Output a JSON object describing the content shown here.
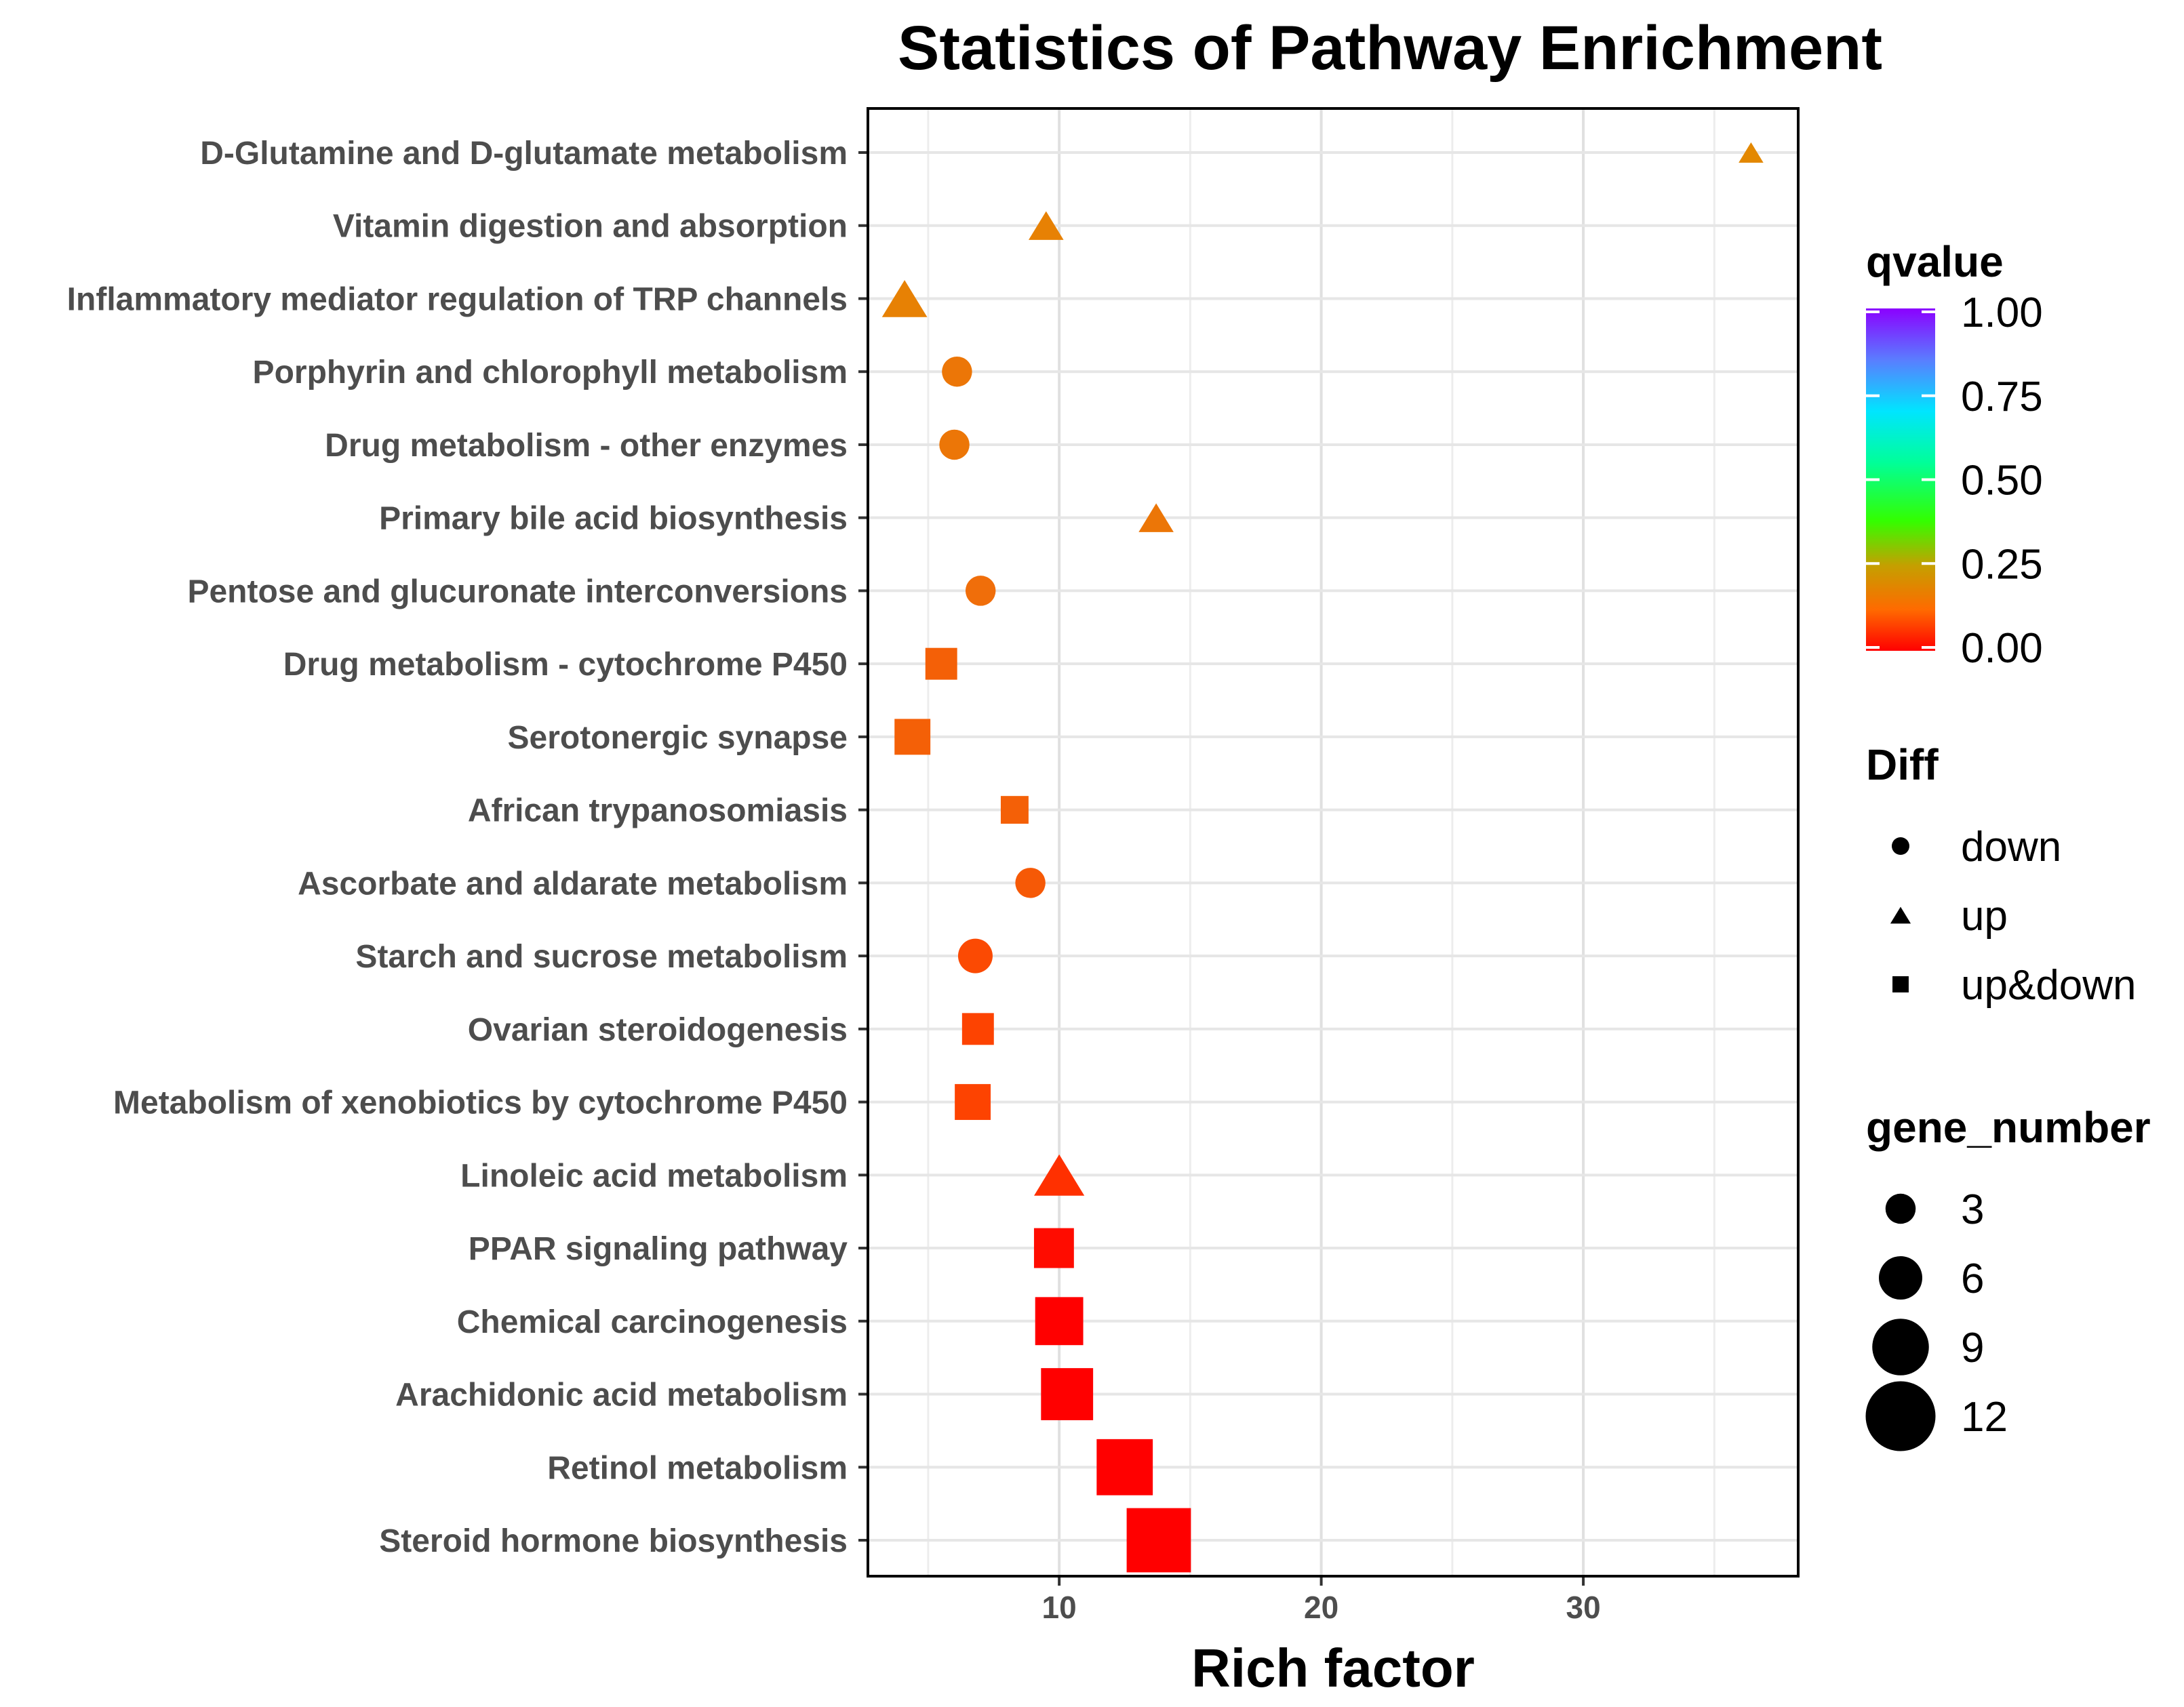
{
  "chart_data": {
    "type": "scatter",
    "title": "Statistics of Pathway Enrichment",
    "xlabel": "Rich factor",
    "ylabel": "",
    "xlim": [
      2.7,
      38.2
    ],
    "xticks": [
      10,
      20,
      30
    ],
    "grid": true,
    "categories": [
      "D-Glutamine and D-glutamate metabolism",
      "Vitamin digestion and absorption",
      "Inflammatory mediator regulation of TRP channels",
      "Porphyrin and chlorophyll metabolism",
      "Drug metabolism - other enzymes",
      "Primary bile acid biosynthesis",
      "Pentose and glucuronate interconversions",
      "Drug metabolism - cytochrome P450",
      "Serotonergic synapse",
      "African trypanosomiasis",
      "Ascorbate and aldarate metabolism",
      "Starch and sucrose metabolism",
      "Ovarian steroidogenesis",
      "Metabolism of xenobiotics by cytochrome P450",
      "Linoleic acid metabolism",
      "PPAR signaling pathway",
      "Chemical carcinogenesis",
      "Arachidonic acid metabolism",
      "Retinol metabolism",
      "Steroid hormone biosynthesis"
    ],
    "points": [
      {
        "pathway": "D-Glutamine and D-glutamate metabolism",
        "rich_factor": 36.4,
        "qvalue": 0.19,
        "diff": "up",
        "gene_number": 1
      },
      {
        "pathway": "Vitamin digestion and absorption",
        "rich_factor": 9.5,
        "qvalue": 0.17,
        "diff": "up",
        "gene_number": 3
      },
      {
        "pathway": "Inflammatory mediator regulation of TRP channels",
        "rich_factor": 4.1,
        "qvalue": 0.17,
        "diff": "up",
        "gene_number": 5
      },
      {
        "pathway": "Porphyrin and chlorophyll metabolism",
        "rich_factor": 6.1,
        "qvalue": 0.14,
        "diff": "down",
        "gene_number": 3
      },
      {
        "pathway": "Drug metabolism - other enzymes",
        "rich_factor": 6.0,
        "qvalue": 0.14,
        "diff": "down",
        "gene_number": 3
      },
      {
        "pathway": "Primary bile acid biosynthesis",
        "rich_factor": 13.7,
        "qvalue": 0.14,
        "diff": "up",
        "gene_number": 3
      },
      {
        "pathway": "Pentose and glucuronate interconversions",
        "rich_factor": 7.0,
        "qvalue": 0.12,
        "diff": "down",
        "gene_number": 3
      },
      {
        "pathway": "Drug metabolism - cytochrome P450",
        "rich_factor": 5.5,
        "qvalue": 0.1,
        "diff": "up&down",
        "gene_number": 4
      },
      {
        "pathway": "Serotonergic synapse",
        "rich_factor": 4.4,
        "qvalue": 0.1,
        "diff": "up&down",
        "gene_number": 5
      },
      {
        "pathway": "African trypanosomiasis",
        "rich_factor": 8.3,
        "qvalue": 0.1,
        "diff": "up&down",
        "gene_number": 3
      },
      {
        "pathway": "Ascorbate and aldarate metabolism",
        "rich_factor": 8.9,
        "qvalue": 0.09,
        "diff": "down",
        "gene_number": 3
      },
      {
        "pathway": "Starch and sucrose metabolism",
        "rich_factor": 6.8,
        "qvalue": 0.07,
        "diff": "down",
        "gene_number": 4
      },
      {
        "pathway": "Ovarian steroidogenesis",
        "rich_factor": 6.9,
        "qvalue": 0.06,
        "diff": "up&down",
        "gene_number": 4
      },
      {
        "pathway": "Metabolism of xenobiotics by cytochrome P450",
        "rich_factor": 6.7,
        "qvalue": 0.06,
        "diff": "up&down",
        "gene_number": 5
      },
      {
        "pathway": "Linoleic acid metabolism",
        "rich_factor": 10.0,
        "qvalue": 0.04,
        "diff": "up",
        "gene_number": 6
      },
      {
        "pathway": "PPAR signaling pathway",
        "rich_factor": 9.8,
        "qvalue": 0.01,
        "diff": "up&down",
        "gene_number": 6
      },
      {
        "pathway": "Chemical carcinogenesis",
        "rich_factor": 10.0,
        "qvalue": 0.0,
        "diff": "up&down",
        "gene_number": 8
      },
      {
        "pathway": "Arachidonic acid metabolism",
        "rich_factor": 10.3,
        "qvalue": 0.0,
        "diff": "up&down",
        "gene_number": 9
      },
      {
        "pathway": "Retinol metabolism",
        "rich_factor": 12.5,
        "qvalue": 0.0,
        "diff": "up&down",
        "gene_number": 10
      },
      {
        "pathway": "Steroid hormone biosynthesis",
        "rich_factor": 13.8,
        "qvalue": 0.0,
        "diff": "up&down",
        "gene_number": 12
      }
    ],
    "legend": {
      "color": {
        "title": "qvalue",
        "labels": [
          "1.00",
          "0.75",
          "0.50",
          "0.25",
          "0.00"
        ],
        "values": [
          1.0,
          0.75,
          0.5,
          0.25,
          0.0
        ],
        "colors": [
          "#8B00FF",
          "#0000FF",
          "#00FFFF",
          "#00FF00",
          "#FF8C00",
          "#FF0000"
        ]
      },
      "shape": {
        "title": "Diff",
        "items": [
          {
            "label": "down",
            "shape": "circle"
          },
          {
            "label": "up",
            "shape": "triangle"
          },
          {
            "label": "up&down",
            "shape": "square"
          }
        ]
      },
      "size": {
        "title": "gene_number",
        "items": [
          {
            "label": "3",
            "value": 3
          },
          {
            "label": "6",
            "value": 6
          },
          {
            "label": "9",
            "value": 9
          },
          {
            "label": "12",
            "value": 12
          }
        ]
      },
      "placement": "right"
    }
  }
}
